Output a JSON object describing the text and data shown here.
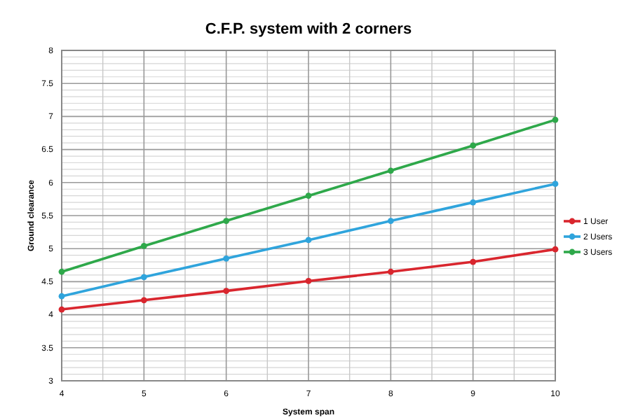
{
  "chart_data": {
    "type": "line",
    "title": "C.F.P. system with 2 corners",
    "xlabel": "System span",
    "ylabel": "Ground clearance",
    "x": [
      4,
      5,
      6,
      7,
      8,
      9,
      10
    ],
    "series": [
      {
        "name": "1 User",
        "color": "#d9262e",
        "values": [
          4.08,
          4.22,
          4.36,
          4.51,
          4.65,
          4.8,
          4.99
        ]
      },
      {
        "name": "2 Users",
        "color": "#2fa4dc",
        "values": [
          4.28,
          4.57,
          4.85,
          5.13,
          5.42,
          5.7,
          5.98
        ]
      },
      {
        "name": "3 Users",
        "color": "#2ea84a",
        "values": [
          4.65,
          5.04,
          5.42,
          5.8,
          6.18,
          6.56,
          6.95
        ]
      }
    ],
    "xlim": [
      4,
      10
    ],
    "xticks": [
      4,
      5,
      6,
      7,
      8,
      9,
      10
    ],
    "ylim": [
      3,
      8
    ],
    "yticks": [
      3,
      3.5,
      4,
      4.5,
      5,
      5.5,
      6,
      6.5,
      7,
      7.5,
      8
    ],
    "grid": true,
    "legend": "right",
    "marker": "circle",
    "line_style": "solid"
  }
}
